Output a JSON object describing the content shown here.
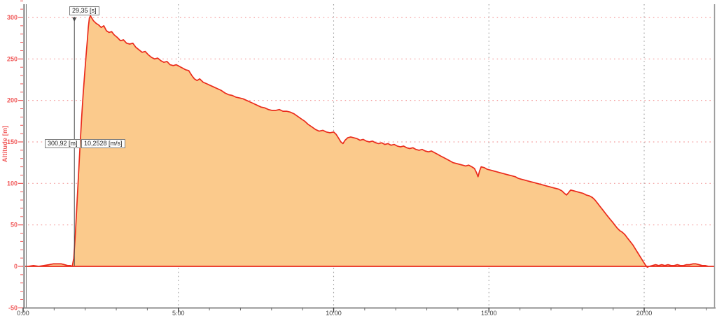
{
  "chart_data": {
    "type": "area",
    "title": "",
    "xlabel": "",
    "ylabel": "Altitude [m]",
    "x_unit": "time mm:ss",
    "xlim_minutes": [
      0,
      22.3
    ],
    "ylim": [
      -50,
      320
    ],
    "grid": {
      "horizontal": "dotted-pink at 50m majors",
      "vertical": "dotted-gray at 5min majors",
      "legend_position": "none"
    },
    "x_major_ticks": [
      {
        "minute": 0,
        "label": "0:00"
      },
      {
        "minute": 5,
        "label": "5:00"
      },
      {
        "minute": 10,
        "label": "10:00"
      },
      {
        "minute": 15,
        "label": "15:00"
      },
      {
        "minute": 20,
        "label": "20:00"
      }
    ],
    "x_minor_step_minutes": 1,
    "y_major_ticks": [
      {
        "value": -50,
        "label": "-50"
      },
      {
        "value": 0,
        "label": "0"
      },
      {
        "value": 50,
        "label": "50"
      },
      {
        "value": 100,
        "label": "100"
      },
      {
        "value": 150,
        "label": "150"
      },
      {
        "value": 200,
        "label": "200"
      },
      {
        "value": 250,
        "label": "250"
      },
      {
        "value": 300,
        "label": "300"
      }
    ],
    "y_minor_step": 10,
    "h_grid_values": [
      50,
      100,
      150,
      200,
      250,
      300
    ],
    "v_grid_minutes": [
      5,
      10,
      15,
      20
    ],
    "annotations": {
      "time_label": "29,35 [s]",
      "altitude_label": "300,92 [m]",
      "rate_label": "10,2528 [m/s]",
      "marker_time_s": 95
    },
    "colors": {
      "area_fill": "#FBCA8C",
      "line": "#EA2B1C",
      "h_grid": "#F49C9C",
      "v_grid": "#9C9C9C",
      "axis": "#9A9A9A",
      "y_label_red": "#F05858",
      "x_label_dark": "#3c3c3c",
      "marker_line": "#4a4a4a"
    },
    "series": [
      {
        "name": "Altitude",
        "points_t_s_alt_m": [
          [
            0,
            0
          ],
          [
            10,
            0
          ],
          [
            20,
            1
          ],
          [
            30,
            0
          ],
          [
            40,
            1
          ],
          [
            50,
            2
          ],
          [
            58,
            3
          ],
          [
            66,
            3
          ],
          [
            74,
            3
          ],
          [
            80,
            2
          ],
          [
            86,
            1
          ],
          [
            91,
            1
          ],
          [
            95,
            0
          ],
          [
            98,
            10
          ],
          [
            101,
            40
          ],
          [
            104,
            75
          ],
          [
            107,
            110
          ],
          [
            110,
            145
          ],
          [
            113,
            178
          ],
          [
            116,
            207
          ],
          [
            119,
            233
          ],
          [
            122,
            257
          ],
          [
            124,
            272
          ],
          [
            126,
            288
          ],
          [
            128,
            299
          ],
          [
            130,
            302
          ],
          [
            136,
            296
          ],
          [
            141,
            293
          ],
          [
            146,
            291
          ],
          [
            151,
            288
          ],
          [
            156,
            290
          ],
          [
            161,
            284
          ],
          [
            166,
            282
          ],
          [
            171,
            283
          ],
          [
            176,
            279
          ],
          [
            182,
            276
          ],
          [
            188,
            272
          ],
          [
            194,
            273
          ],
          [
            200,
            269
          ],
          [
            206,
            268
          ],
          [
            212,
            269
          ],
          [
            218,
            264
          ],
          [
            224,
            261
          ],
          [
            230,
            258
          ],
          [
            236,
            259
          ],
          [
            242,
            255
          ],
          [
            248,
            252
          ],
          [
            254,
            250
          ],
          [
            260,
            251
          ],
          [
            266,
            248
          ],
          [
            272,
            246
          ],
          [
            278,
            247
          ],
          [
            284,
            243
          ],
          [
            290,
            242
          ],
          [
            296,
            243
          ],
          [
            302,
            241
          ],
          [
            308,
            239
          ],
          [
            314,
            237
          ],
          [
            320,
            236
          ],
          [
            326,
            230
          ],
          [
            331,
            226
          ],
          [
            336,
            224
          ],
          [
            341,
            226
          ],
          [
            348,
            222
          ],
          [
            355,
            220
          ],
          [
            362,
            218
          ],
          [
            369,
            216
          ],
          [
            376,
            214
          ],
          [
            383,
            212
          ],
          [
            390,
            209
          ],
          [
            397,
            207
          ],
          [
            404,
            206
          ],
          [
            411,
            204
          ],
          [
            418,
            203
          ],
          [
            425,
            202
          ],
          [
            432,
            200
          ],
          [
            439,
            198
          ],
          [
            446,
            196
          ],
          [
            453,
            194
          ],
          [
            460,
            192
          ],
          [
            467,
            191
          ],
          [
            474,
            189
          ],
          [
            481,
            188
          ],
          [
            488,
            188
          ],
          [
            495,
            189
          ],
          [
            502,
            187
          ],
          [
            509,
            187
          ],
          [
            516,
            186
          ],
          [
            523,
            184
          ],
          [
            530,
            181
          ],
          [
            537,
            178
          ],
          [
            544,
            175
          ],
          [
            551,
            171
          ],
          [
            558,
            168
          ],
          [
            565,
            165
          ],
          [
            572,
            163
          ],
          [
            579,
            164
          ],
          [
            586,
            162
          ],
          [
            593,
            161
          ],
          [
            600,
            162
          ],
          [
            605,
            159
          ],
          [
            610,
            154
          ],
          [
            614,
            150
          ],
          [
            618,
            148
          ],
          [
            622,
            152
          ],
          [
            627,
            155
          ],
          [
            633,
            156
          ],
          [
            639,
            155
          ],
          [
            645,
            154
          ],
          [
            651,
            152
          ],
          [
            657,
            153
          ],
          [
            663,
            151
          ],
          [
            669,
            150
          ],
          [
            675,
            151
          ],
          [
            681,
            149
          ],
          [
            687,
            148
          ],
          [
            693,
            149
          ],
          [
            699,
            147
          ],
          [
            705,
            148
          ],
          [
            711,
            146
          ],
          [
            717,
            147
          ],
          [
            723,
            145
          ],
          [
            729,
            144
          ],
          [
            735,
            145
          ],
          [
            741,
            143
          ],
          [
            747,
            142
          ],
          [
            753,
            143
          ],
          [
            759,
            141
          ],
          [
            765,
            140
          ],
          [
            771,
            141
          ],
          [
            777,
            139
          ],
          [
            783,
            138
          ],
          [
            789,
            139
          ],
          [
            795,
            137
          ],
          [
            801,
            135
          ],
          [
            807,
            133
          ],
          [
            813,
            131
          ],
          [
            819,
            129
          ],
          [
            825,
            127
          ],
          [
            831,
            125
          ],
          [
            837,
            124
          ],
          [
            843,
            123
          ],
          [
            849,
            122
          ],
          [
            855,
            121
          ],
          [
            861,
            122
          ],
          [
            867,
            120
          ],
          [
            872,
            118
          ],
          [
            876,
            113
          ],
          [
            879,
            108
          ],
          [
            882,
            115
          ],
          [
            885,
            120
          ],
          [
            891,
            119
          ],
          [
            897,
            117
          ],
          [
            903,
            116
          ],
          [
            909,
            115
          ],
          [
            915,
            114
          ],
          [
            921,
            113
          ],
          [
            927,
            112
          ],
          [
            933,
            111
          ],
          [
            939,
            110
          ],
          [
            945,
            109
          ],
          [
            951,
            108
          ],
          [
            957,
            106
          ],
          [
            963,
            105
          ],
          [
            969,
            104
          ],
          [
            975,
            103
          ],
          [
            981,
            102
          ],
          [
            987,
            101
          ],
          [
            993,
            100
          ],
          [
            999,
            99
          ],
          [
            1005,
            98
          ],
          [
            1011,
            97
          ],
          [
            1017,
            96
          ],
          [
            1023,
            95
          ],
          [
            1029,
            94
          ],
          [
            1035,
            93
          ],
          [
            1041,
            91
          ],
          [
            1046,
            88
          ],
          [
            1050,
            86
          ],
          [
            1054,
            89
          ],
          [
            1058,
            92
          ],
          [
            1064,
            91
          ],
          [
            1070,
            90
          ],
          [
            1076,
            89
          ],
          [
            1082,
            88
          ],
          [
            1088,
            86
          ],
          [
            1094,
            85
          ],
          [
            1100,
            83
          ],
          [
            1105,
            80
          ],
          [
            1110,
            76
          ],
          [
            1115,
            72
          ],
          [
            1120,
            68
          ],
          [
            1125,
            64
          ],
          [
            1130,
            60
          ],
          [
            1134,
            57
          ],
          [
            1138,
            54
          ],
          [
            1143,
            50
          ],
          [
            1148,
            46
          ],
          [
            1153,
            43
          ],
          [
            1158,
            41
          ],
          [
            1163,
            38
          ],
          [
            1168,
            34
          ],
          [
            1173,
            30
          ],
          [
            1178,
            26
          ],
          [
            1183,
            21
          ],
          [
            1188,
            16
          ],
          [
            1193,
            11
          ],
          [
            1198,
            6
          ],
          [
            1202,
            2
          ],
          [
            1206,
            -1
          ],
          [
            1210,
            0
          ],
          [
            1216,
            1
          ],
          [
            1222,
            2
          ],
          [
            1228,
            1
          ],
          [
            1234,
            2
          ],
          [
            1240,
            1
          ],
          [
            1246,
            2
          ],
          [
            1252,
            1
          ],
          [
            1258,
            1
          ],
          [
            1264,
            2
          ],
          [
            1270,
            1
          ],
          [
            1276,
            1
          ],
          [
            1282,
            2
          ],
          [
            1288,
            2
          ],
          [
            1294,
            3
          ],
          [
            1300,
            3
          ],
          [
            1306,
            2
          ],
          [
            1312,
            1
          ],
          [
            1318,
            1
          ],
          [
            1324,
            0
          ],
          [
            1330,
            0
          ],
          [
            1335,
            0
          ]
        ]
      }
    ]
  }
}
